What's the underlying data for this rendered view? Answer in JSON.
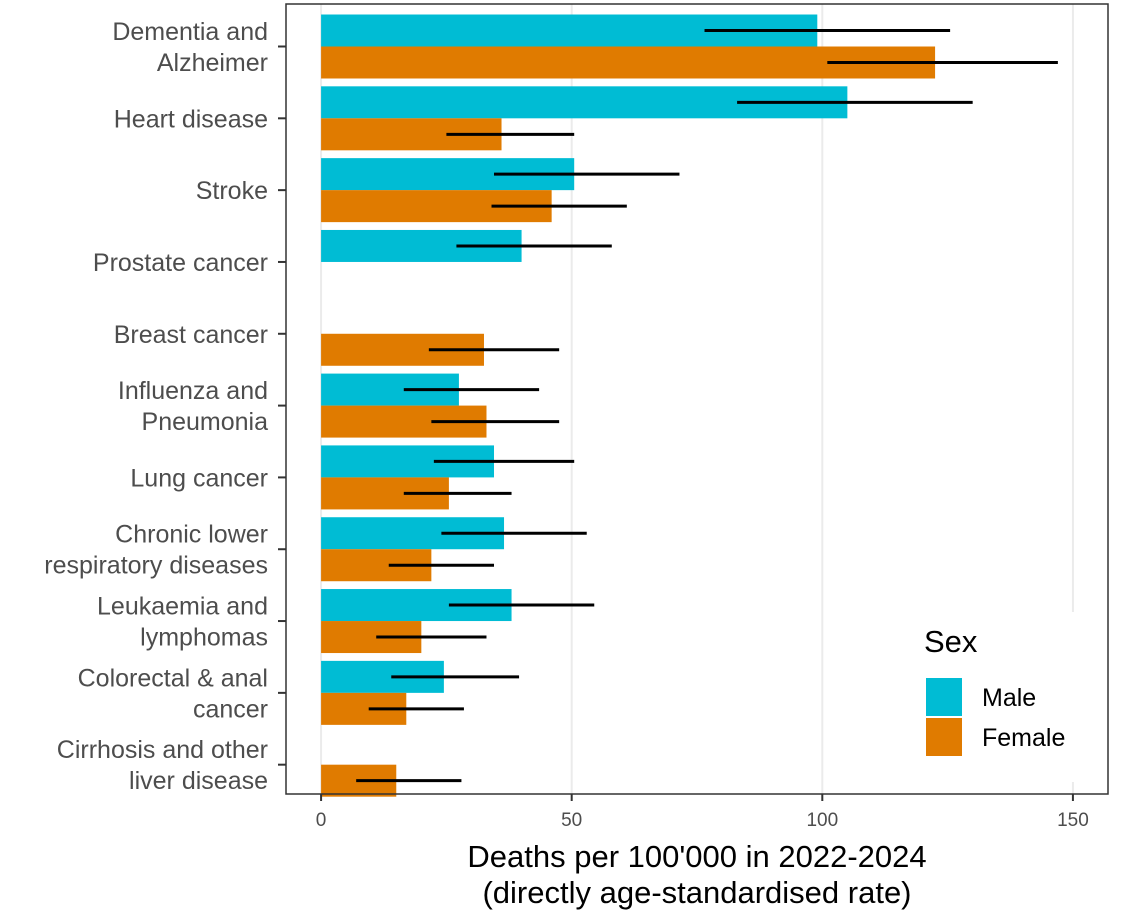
{
  "chart_data": {
    "type": "bar",
    "orientation": "horizontal",
    "categories": [
      [
        "Dementia and",
        "Alzheimer"
      ],
      [
        "Heart disease"
      ],
      [
        "Stroke"
      ],
      [
        "Prostate cancer"
      ],
      [
        "Breast cancer"
      ],
      [
        "Influenza and",
        "Pneumonia"
      ],
      [
        "Lung cancer"
      ],
      [
        "Chronic lower",
        "respiratory diseases"
      ],
      [
        "Leukaemia and",
        "lymphomas"
      ],
      [
        "Colorectal & anal",
        "cancer"
      ],
      [
        "Cirrhosis and other",
        "liver disease"
      ]
    ],
    "series": [
      {
        "name": "Male",
        "color": "#00BCD4",
        "values": [
          99,
          105,
          50.5,
          40,
          null,
          27.5,
          34.5,
          36.5,
          38,
          24.5,
          null
        ],
        "error_low": [
          76.5,
          83,
          34.5,
          27,
          null,
          16.5,
          22.5,
          24,
          25.5,
          14,
          null
        ],
        "error_high": [
          125.5,
          130,
          71.5,
          58,
          null,
          43.5,
          50.5,
          53,
          54.5,
          39.5,
          null
        ]
      },
      {
        "name": "Female",
        "color": "#E07B00",
        "values": [
          122.5,
          36,
          46,
          null,
          32.5,
          33,
          25.5,
          22,
          20,
          17,
          15
        ],
        "error_low": [
          101,
          25,
          34,
          null,
          21.5,
          22,
          16.5,
          13.5,
          11,
          9.5,
          7
        ],
        "error_high": [
          147,
          50.5,
          61,
          null,
          47.5,
          47.5,
          38,
          34.5,
          33,
          28.5,
          28
        ]
      }
    ],
    "xlim": [
      -7,
      157
    ],
    "xticks": [
      "0",
      "50",
      "100",
      "150"
    ],
    "xtick_values": [
      0,
      50,
      100,
      150
    ],
    "xlabel": [
      "Deaths per 100'000 in 2022-2024",
      "(directly age-standardised rate)"
    ],
    "ylabel": "",
    "legend": {
      "title": "Sex",
      "position": "bottom-right",
      "entries": [
        "Male",
        "Female"
      ]
    },
    "grid": true
  }
}
